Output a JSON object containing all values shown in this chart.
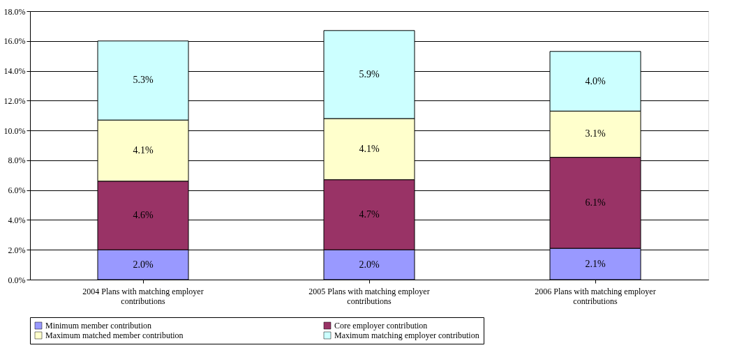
{
  "chart_data": {
    "type": "bar",
    "stacked": true,
    "categories": [
      "2004 Plans with matching employer contributions",
      "2005 Plans with matching employer contributions",
      "2006 Plans with matching employer contributions"
    ],
    "series": [
      {
        "name": "Minimum member contribution",
        "color": "#9999ff",
        "values": [
          2.0,
          2.0,
          2.1
        ],
        "value_labels": [
          "2.0%",
          "2.0%",
          "2.1%"
        ]
      },
      {
        "name": "Core employer contribution",
        "color": "#993366",
        "values": [
          4.6,
          4.7,
          6.1
        ],
        "value_labels": [
          "4.6%",
          "4.7%",
          "6.1%"
        ]
      },
      {
        "name": "Maximum matched member contribution",
        "color": "#ffffcc",
        "values": [
          4.1,
          4.1,
          3.1
        ],
        "value_labels": [
          "4.1%",
          "4.1%",
          "3.1%"
        ]
      },
      {
        "name": "Maximum matching employer contribution",
        "color": "#ccffff",
        "values": [
          5.3,
          5.9,
          4.0
        ],
        "value_labels": [
          "5.3%",
          "5.9%",
          "4.0%"
        ]
      }
    ],
    "ylim": [
      0,
      18
    ],
    "yticks": [
      {
        "value": 0,
        "label": "0.0%"
      },
      {
        "value": 2,
        "label": "2.0%"
      },
      {
        "value": 4,
        "label": "4.0%"
      },
      {
        "value": 6,
        "label": "6.0%"
      },
      {
        "value": 8,
        "label": "8.0%"
      },
      {
        "value": 10,
        "label": "10.0%"
      },
      {
        "value": 12,
        "label": "12.0%"
      },
      {
        "value": 14,
        "label": "14.0%"
      },
      {
        "value": 16,
        "label": "16.0%"
      },
      {
        "value": 18,
        "label": "18.0%"
      }
    ],
    "grid": "y",
    "legend": "bottom"
  }
}
